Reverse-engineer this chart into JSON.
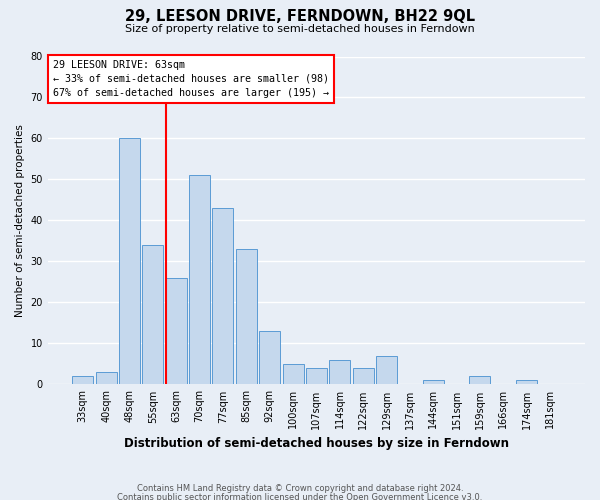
{
  "title": "29, LEESON DRIVE, FERNDOWN, BH22 9QL",
  "subtitle": "Size of property relative to semi-detached houses in Ferndown",
  "xlabel": "Distribution of semi-detached houses by size in Ferndown",
  "ylabel": "Number of semi-detached properties",
  "categories": [
    "33sqm",
    "40sqm",
    "48sqm",
    "55sqm",
    "63sqm",
    "70sqm",
    "77sqm",
    "85sqm",
    "92sqm",
    "100sqm",
    "107sqm",
    "114sqm",
    "122sqm",
    "129sqm",
    "137sqm",
    "144sqm",
    "151sqm",
    "159sqm",
    "166sqm",
    "174sqm",
    "181sqm"
  ],
  "values": [
    2,
    3,
    60,
    34,
    26,
    51,
    43,
    33,
    13,
    5,
    4,
    6,
    4,
    7,
    0,
    1,
    0,
    2,
    0,
    1,
    0
  ],
  "bar_color": "#c5d8ed",
  "bar_edge_color": "#5b9bd5",
  "red_line_index": 4,
  "ylim": [
    0,
    80
  ],
  "yticks": [
    0,
    10,
    20,
    30,
    40,
    50,
    60,
    70,
    80
  ],
  "annotation_title": "29 LEESON DRIVE: 63sqm",
  "annotation_line1": "← 33% of semi-detached houses are smaller (98)",
  "annotation_line2": "67% of semi-detached houses are larger (195) →",
  "footnote1": "Contains HM Land Registry data © Crown copyright and database right 2024.",
  "footnote2": "Contains public sector information licensed under the Open Government Licence v3.0.",
  "background_color": "#e8eef6",
  "grid_color": "#ffffff"
}
